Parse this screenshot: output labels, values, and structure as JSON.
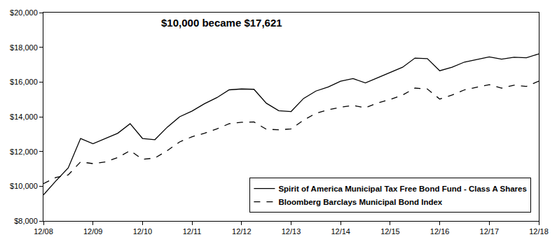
{
  "chart_data": {
    "type": "line",
    "annotations": [
      "$10,000 became $17,621"
    ],
    "categories": [
      "12/08",
      null,
      null,
      null,
      "12/09",
      null,
      null,
      null,
      "12/10",
      null,
      null,
      null,
      "12/11",
      null,
      null,
      null,
      "12/12",
      null,
      null,
      null,
      "12/13",
      null,
      null,
      null,
      "12/14",
      null,
      null,
      null,
      "12/15",
      null,
      null,
      null,
      "12/16",
      null,
      null,
      null,
      "12/17",
      null,
      null,
      null,
      "12/18"
    ],
    "series": [
      {
        "name": "Spirit of America Municipal Tax Free Bond Fund - Class A Shares",
        "color": "#000000",
        "line_style": "solid",
        "values": [
          9500,
          10300,
          11050,
          12750,
          12450,
          12750,
          13050,
          13600,
          12750,
          12680,
          13400,
          14000,
          14330,
          14750,
          15100,
          15550,
          15600,
          15580,
          14780,
          14350,
          14300,
          15050,
          15480,
          15720,
          16050,
          16200,
          15950,
          16250,
          16550,
          16850,
          17380,
          17350,
          16650,
          16850,
          17150,
          17300,
          17450,
          17320,
          17430,
          17400,
          17621
        ]
      },
      {
        "name": "Bloomberg Barclays Municipal Bond Index",
        "color": "#000000",
        "line_style": "dashed",
        "values": [
          10150,
          10500,
          10650,
          11400,
          11300,
          11400,
          11650,
          12050,
          11550,
          11620,
          12050,
          12550,
          12850,
          13050,
          13300,
          13600,
          13680,
          13700,
          13280,
          13250,
          13300,
          13800,
          14200,
          14400,
          14550,
          14650,
          14520,
          14800,
          15000,
          15250,
          15650,
          15600,
          15020,
          15250,
          15550,
          15700,
          15850,
          15650,
          15820,
          15750,
          16050
        ]
      }
    ],
    "ylim": [
      8000,
      20000
    ],
    "yticks": [
      {
        "value": 8000,
        "label": "$8,000"
      },
      {
        "value": 10000,
        "label": "$10,000"
      },
      {
        "value": 12000,
        "label": "$12,000"
      },
      {
        "value": 14000,
        "label": "$14,000"
      },
      {
        "value": 16000,
        "label": "$16,000"
      },
      {
        "value": 18000,
        "label": "$18,000"
      },
      {
        "value": 20000,
        "label": "$20,000"
      }
    ],
    "grid": false,
    "legend": "lower right"
  }
}
